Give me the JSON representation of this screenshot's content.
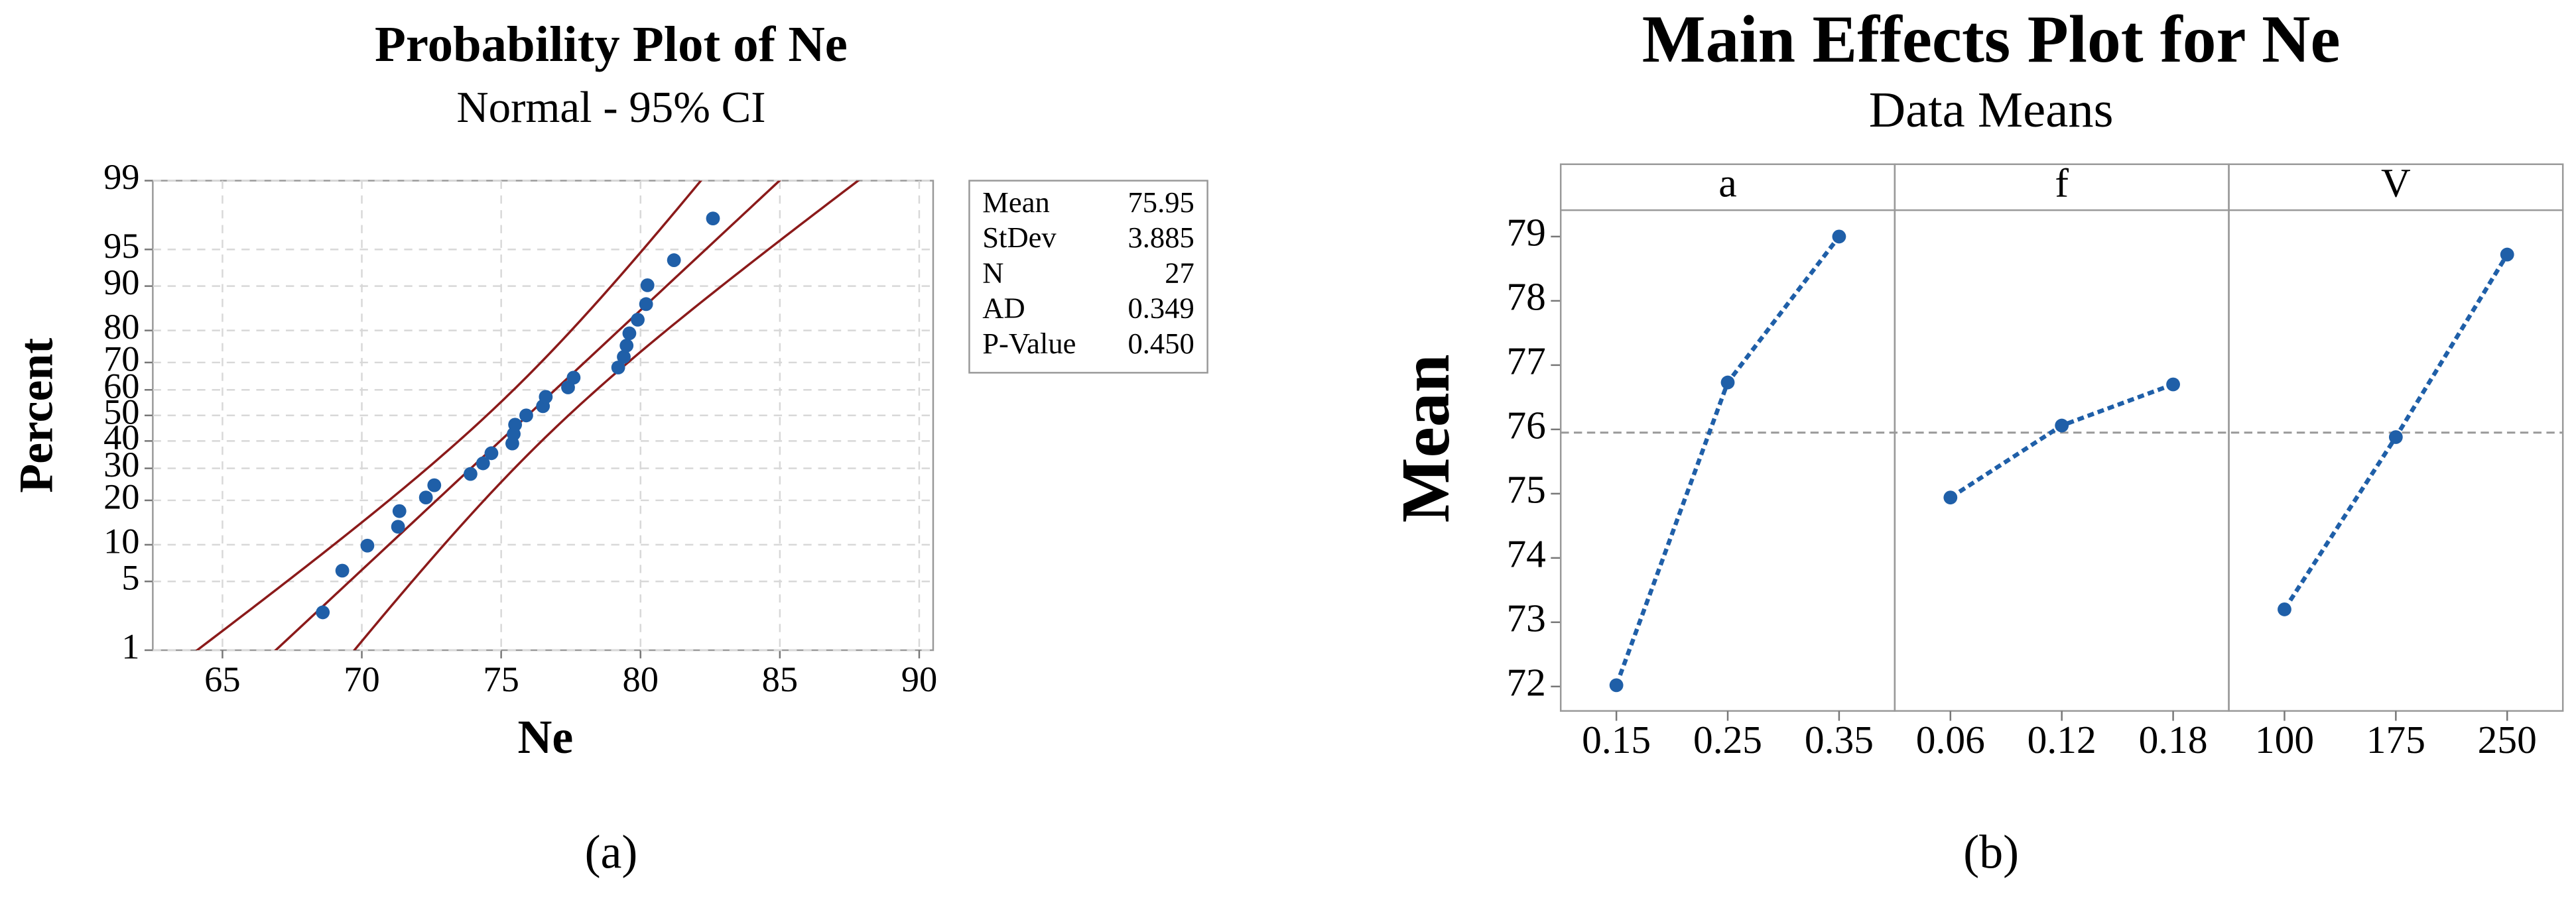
{
  "chart_data": [
    {
      "type": "probability",
      "title": "Probability Plot of Ne",
      "subtitle": "Normal - 95% CI",
      "xlabel": "Ne",
      "ylabel": "Percent",
      "x": [
        68.6,
        69.3,
        70.2,
        71.3,
        71.35,
        72.3,
        72.6,
        73.9,
        74.35,
        74.65,
        75.4,
        75.45,
        75.5,
        75.9,
        76.5,
        76.6,
        77.4,
        77.6,
        79.2,
        79.4,
        79.5,
        79.6,
        79.9,
        80.2,
        80.25,
        81.2,
        82.6
      ],
      "y": [
        2.55,
        6.2,
        9.85,
        13.5,
        17.15,
        20.8,
        24.45,
        28.1,
        31.75,
        35.4,
        39.05,
        42.7,
        46.35,
        50,
        53.65,
        57.3,
        60.95,
        64.6,
        68.25,
        71.9,
        75.55,
        79.2,
        82.85,
        86.5,
        90.15,
        93.8,
        97.45
      ],
      "xlim": [
        62.5,
        90.5
      ],
      "xticks": [
        65,
        70,
        75,
        80,
        85,
        90
      ],
      "ylim": [
        1,
        99
      ],
      "yticks": [
        1,
        5,
        10,
        20,
        30,
        40,
        50,
        60,
        70,
        80,
        90,
        95,
        99
      ],
      "y_scale": "probability",
      "grid": true,
      "color": "#1f5fa8",
      "fit_color": "#8b1a1a",
      "stats": [
        {
          "name": "Mean",
          "value": 75.95
        },
        {
          "name": "StDev",
          "value": 3.885
        },
        {
          "name": "N",
          "value": 27
        },
        {
          "name": "AD",
          "value": 0.349
        },
        {
          "name": "P-Value",
          "value": 0.45,
          "value_label": "0.450"
        }
      ],
      "caption": "(a)"
    },
    {
      "type": "main_effects",
      "title": "Main Effects Plot for Ne",
      "subtitle": "Data Means",
      "ylabel": "Mean",
      "panels": [
        {
          "name": "a",
          "categories": [
            "0.15",
            "0.25",
            "0.35"
          ],
          "values": [
            72.02,
            76.73,
            79.0
          ]
        },
        {
          "name": "f",
          "categories": [
            "0.06",
            "0.12",
            "0.18"
          ],
          "values": [
            74.94,
            76.06,
            76.7
          ]
        },
        {
          "name": "V",
          "categories": [
            "100",
            "175",
            "250"
          ],
          "values": [
            73.2,
            75.88,
            78.72
          ]
        }
      ],
      "ylim": [
        71.62,
        79.41
      ],
      "yticks": [
        72,
        73,
        74,
        75,
        76,
        77,
        78,
        79
      ],
      "mean_line": 75.95,
      "color": "#1f5fa8",
      "caption": "(b)"
    }
  ]
}
